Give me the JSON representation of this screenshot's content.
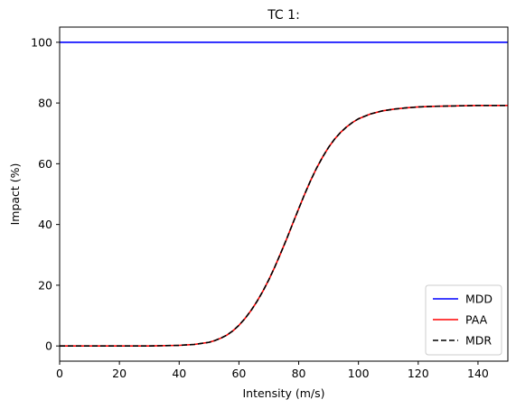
{
  "chart_data": {
    "type": "line",
    "title": "TC 1:",
    "xlabel": "Intensity (m/s)",
    "ylabel": "Impact (%)",
    "xlim": [
      0,
      150
    ],
    "ylim": [
      -5,
      105
    ],
    "xticks": [
      0,
      20,
      40,
      60,
      80,
      100,
      120,
      140
    ],
    "yticks": [
      0,
      20,
      40,
      60,
      80,
      100
    ],
    "grid": false,
    "legend_position": "bottom-right",
    "x": [
      0,
      10,
      20,
      30,
      40,
      45,
      50,
      52,
      54,
      56,
      58,
      60,
      62,
      64,
      66,
      68,
      70,
      72,
      74,
      76,
      78,
      80,
      82,
      84,
      86,
      88,
      90,
      92,
      94,
      96,
      98,
      100,
      104,
      108,
      112,
      116,
      120,
      125,
      130,
      135,
      140,
      145,
      150
    ],
    "series": [
      {
        "name": "MDD",
        "color": "#0000ff",
        "style": "solid",
        "values": [
          100,
          100,
          100,
          100,
          100,
          100,
          100,
          100,
          100,
          100,
          100,
          100,
          100,
          100,
          100,
          100,
          100,
          100,
          100,
          100,
          100,
          100,
          100,
          100,
          100,
          100,
          100,
          100,
          100,
          100,
          100,
          100,
          100,
          100,
          100,
          100,
          100,
          100,
          100,
          100,
          100,
          100,
          100
        ]
      },
      {
        "name": "PAA",
        "color": "#ff0000",
        "style": "solid",
        "values": [
          0,
          0,
          0,
          0,
          0.2,
          0.5,
          1.2,
          1.8,
          2.6,
          3.6,
          5,
          6.8,
          9,
          11.6,
          14.6,
          18,
          21.8,
          26,
          30.6,
          35.3,
          40.3,
          45.2,
          50,
          54.5,
          58.6,
          62.2,
          65.4,
          68.1,
          70.3,
          72.1,
          73.6,
          74.8,
          76.4,
          77.4,
          78,
          78.4,
          78.7,
          78.9,
          79,
          79.1,
          79.2,
          79.2,
          79.2
        ]
      },
      {
        "name": "MDR",
        "color": "#000000",
        "style": "dashed",
        "values": [
          0,
          0,
          0,
          0,
          0.2,
          0.5,
          1.2,
          1.8,
          2.6,
          3.6,
          5,
          6.8,
          9,
          11.6,
          14.6,
          18,
          21.8,
          26,
          30.6,
          35.3,
          40.3,
          45.2,
          50,
          54.5,
          58.6,
          62.2,
          65.4,
          68.1,
          70.3,
          72.1,
          73.6,
          74.8,
          76.4,
          77.4,
          78,
          78.4,
          78.7,
          78.9,
          79,
          79.1,
          79.2,
          79.2,
          79.2
        ]
      }
    ]
  }
}
